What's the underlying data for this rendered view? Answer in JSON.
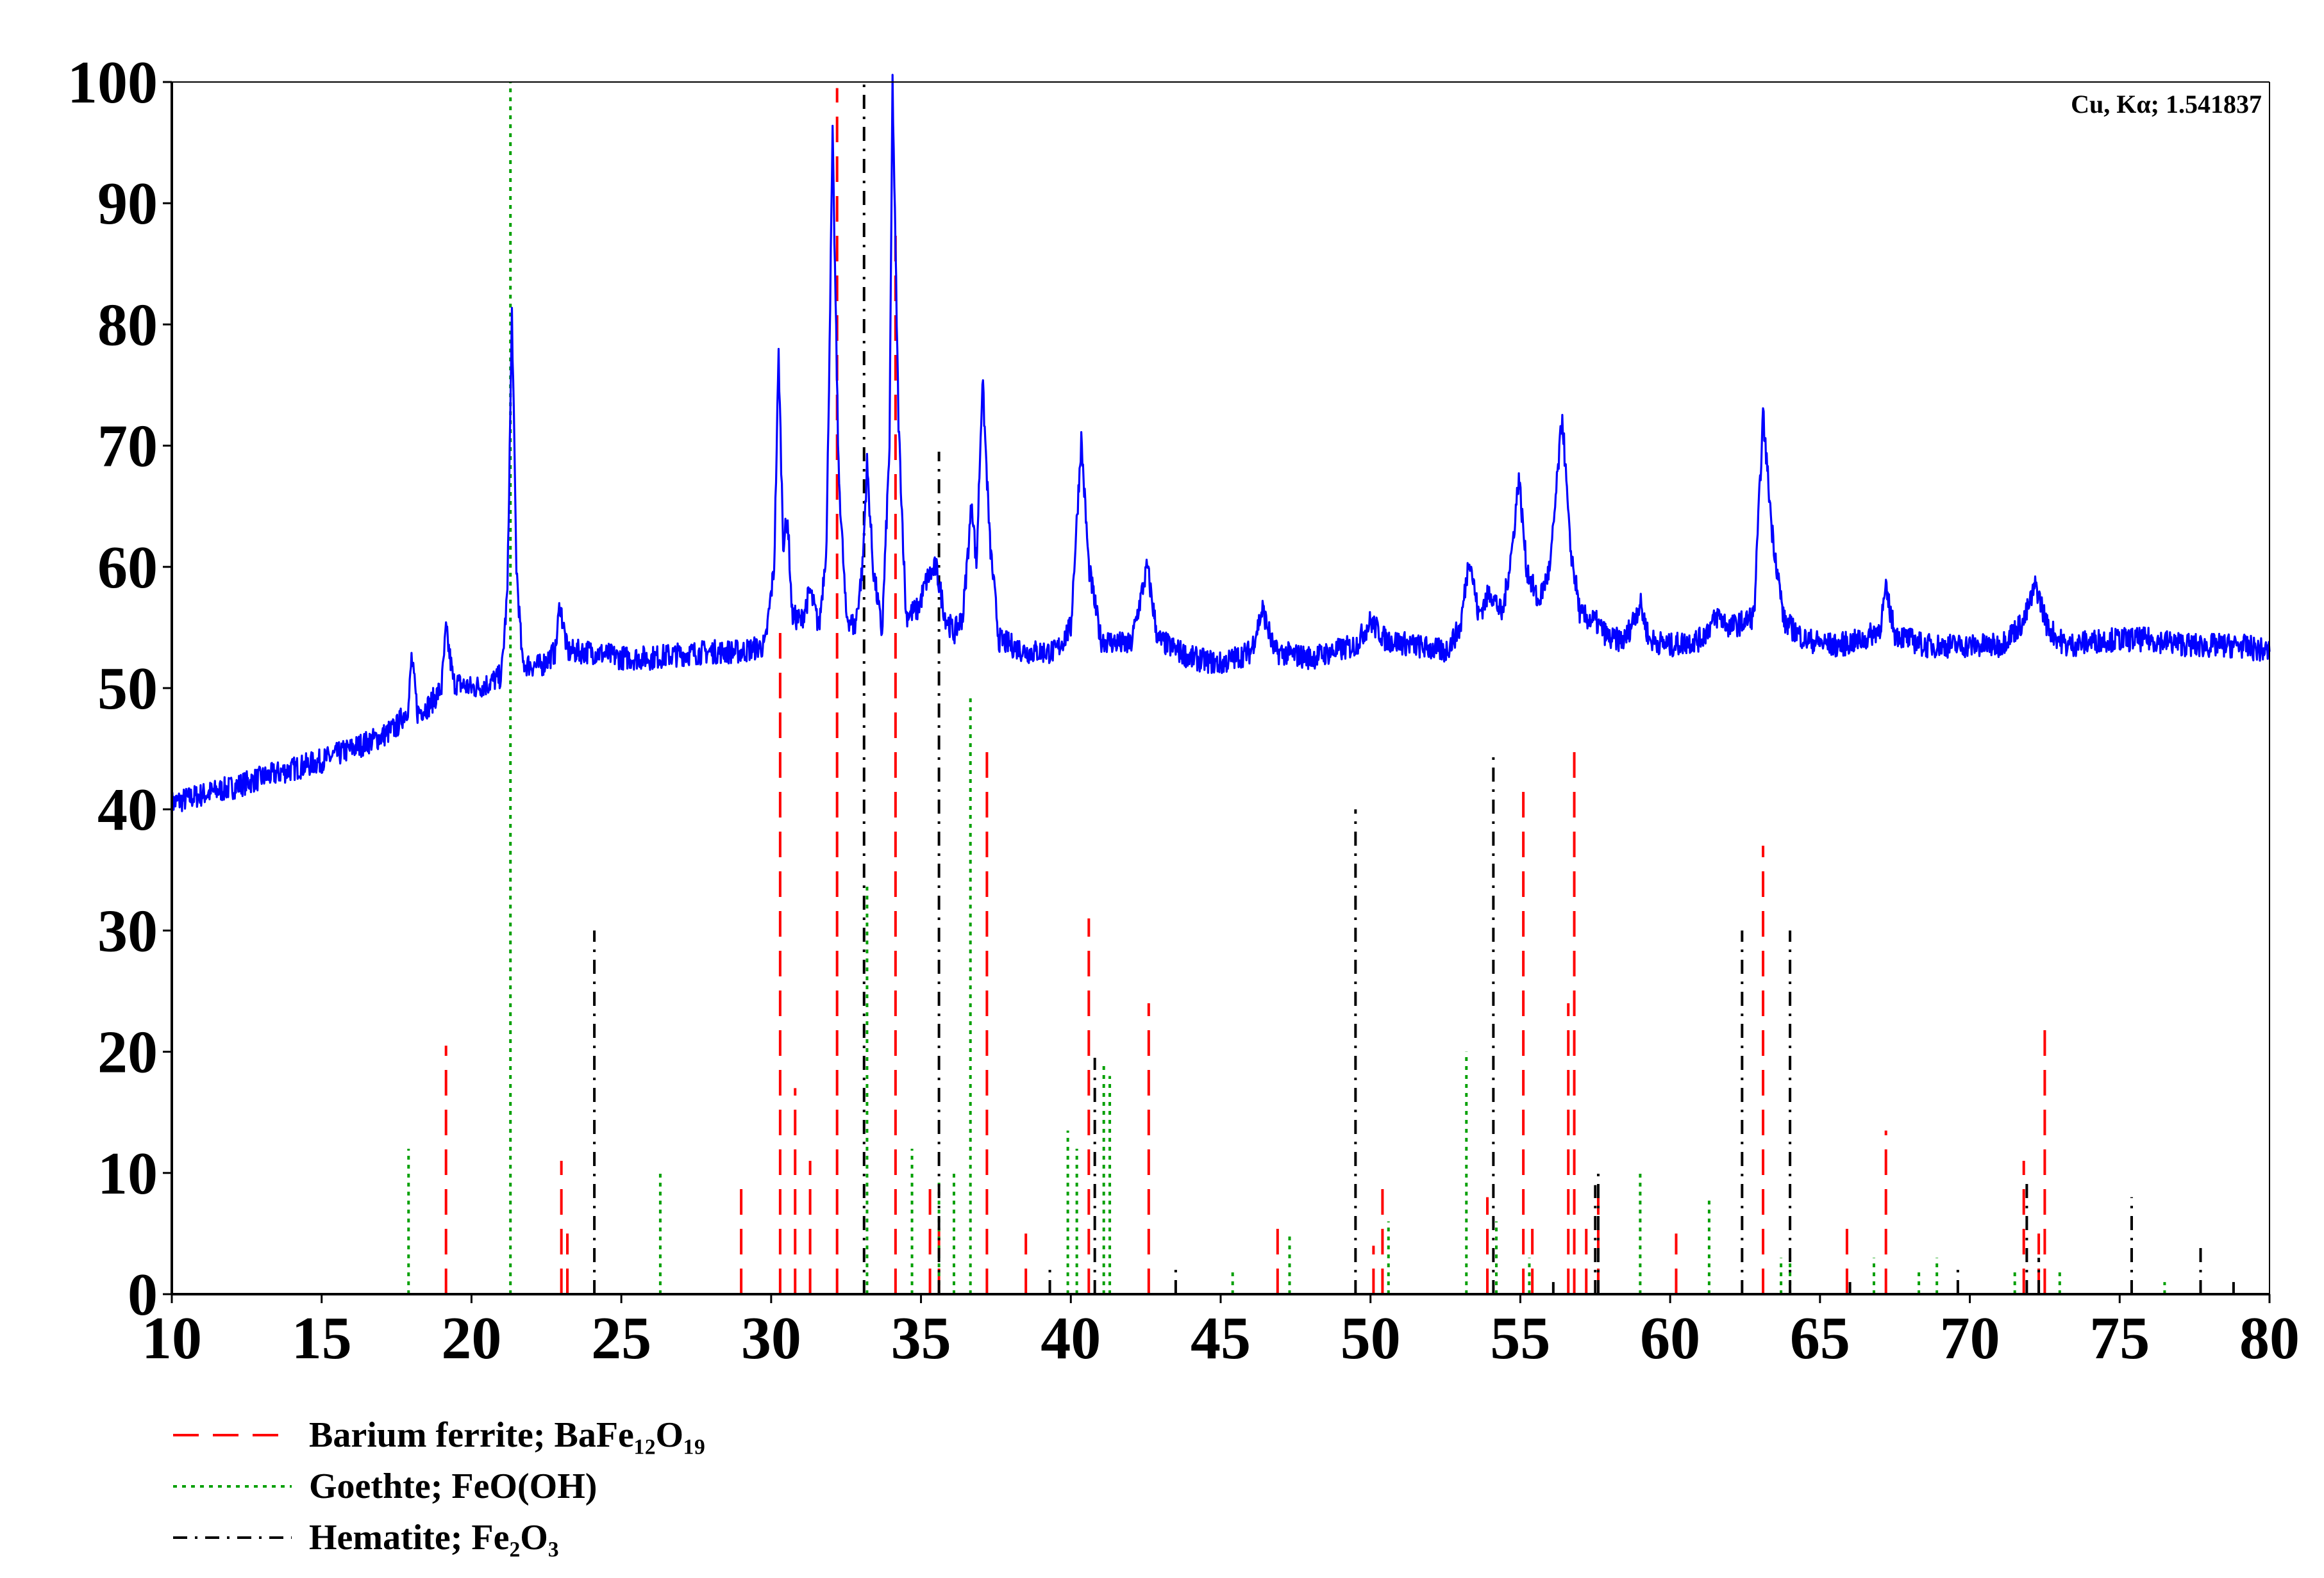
{
  "chart_data": {
    "type": "line",
    "title": "",
    "xlabel": "",
    "ylabel": "",
    "xlim": [
      10,
      80
    ],
    "ylim": [
      0,
      100
    ],
    "x_ticks": [
      10,
      15,
      20,
      25,
      30,
      35,
      40,
      45,
      50,
      55,
      60,
      65,
      70,
      75,
      80
    ],
    "y_ticks": [
      0,
      10,
      20,
      30,
      40,
      50,
      60,
      70,
      80,
      90,
      100
    ],
    "grid": false,
    "annotation": "Cu, Kα; 1.541837",
    "pattern": {
      "color": "#0000ff",
      "points": [
        [
          10,
          40.5
        ],
        [
          11,
          41.2
        ],
        [
          12,
          41.8
        ],
        [
          13,
          42.6
        ],
        [
          14,
          43.3
        ],
        [
          15,
          44.0
        ],
        [
          16,
          45.0
        ],
        [
          17,
          46.0
        ],
        [
          17.5,
          46.8
        ],
        [
          17.9,
          48.5
        ],
        [
          18.0,
          52.5
        ],
        [
          18.2,
          48.0
        ],
        [
          18.6,
          48.6
        ],
        [
          19.0,
          50.0
        ],
        [
          19.15,
          54.8
        ],
        [
          19.4,
          50.5
        ],
        [
          20,
          50.0
        ],
        [
          20.5,
          50.3
        ],
        [
          21.0,
          51.0
        ],
        [
          21.2,
          58.0
        ],
        [
          21.35,
          81.0
        ],
        [
          21.5,
          60.0
        ],
        [
          21.7,
          52.0
        ],
        [
          22.3,
          51.8
        ],
        [
          22.8,
          53.0
        ],
        [
          22.95,
          57.0
        ],
        [
          23.2,
          53.0
        ],
        [
          24,
          53.0
        ],
        [
          25,
          52.5
        ],
        [
          26,
          52.5
        ],
        [
          27,
          52.8
        ],
        [
          28,
          53.0
        ],
        [
          29,
          53.0
        ],
        [
          29.8,
          53.5
        ],
        [
          30.1,
          60.0
        ],
        [
          30.25,
          77.5
        ],
        [
          30.4,
          62.0
        ],
        [
          30.55,
          64.0
        ],
        [
          30.7,
          56.0
        ],
        [
          31.0,
          55.5
        ],
        [
          31.3,
          58.0
        ],
        [
          31.6,
          55.0
        ],
        [
          31.85,
          62.0
        ],
        [
          32.05,
          95.5
        ],
        [
          32.25,
          68.0
        ],
        [
          32.5,
          56.0
        ],
        [
          32.8,
          55.0
        ],
        [
          33.05,
          60.0
        ],
        [
          33.2,
          68.5
        ],
        [
          33.4,
          60.0
        ],
        [
          33.7,
          54.5
        ],
        [
          33.95,
          70.0
        ],
        [
          34.05,
          100.0
        ],
        [
          34.25,
          72.0
        ],
        [
          34.5,
          56.0
        ],
        [
          34.9,
          56.5
        ],
        [
          35.2,
          59.0
        ],
        [
          35.5,
          60.0
        ],
        [
          35.8,
          56.0
        ],
        [
          36.1,
          54.5
        ],
        [
          36.4,
          56.0
        ],
        [
          36.7,
          65.5
        ],
        [
          36.85,
          60.0
        ],
        [
          37.05,
          75.5
        ],
        [
          37.3,
          62.0
        ],
        [
          37.6,
          54.0
        ],
        [
          38.5,
          53.0
        ],
        [
          39.5,
          53.0
        ],
        [
          40.0,
          55.0
        ],
        [
          40.35,
          70.5
        ],
        [
          40.6,
          60.0
        ],
        [
          41.0,
          54.0
        ],
        [
          42.0,
          53.5
        ],
        [
          42.55,
          60.0
        ],
        [
          42.9,
          54.0
        ],
        [
          44,
          52.5
        ],
        [
          45,
          52.0
        ],
        [
          46.0,
          53.0
        ],
        [
          46.4,
          56.5
        ],
        [
          46.8,
          53.0
        ],
        [
          48,
          52.5
        ],
        [
          49.5,
          53.5
        ],
        [
          50.0,
          55.5
        ],
        [
          50.5,
          54.0
        ],
        [
          51.5,
          53.5
        ],
        [
          52.5,
          53.0
        ],
        [
          53.0,
          55.0
        ],
        [
          53.3,
          61.0
        ],
        [
          53.6,
          56.0
        ],
        [
          54.0,
          58.0
        ],
        [
          54.4,
          56.0
        ],
        [
          54.75,
          62.0
        ],
        [
          54.95,
          67.5
        ],
        [
          55.2,
          60.0
        ],
        [
          55.6,
          57.0
        ],
        [
          56.0,
          60.0
        ],
        [
          56.4,
          72.5
        ],
        [
          56.65,
          62.0
        ],
        [
          57.0,
          56.0
        ],
        [
          57.5,
          55.5
        ],
        [
          58.0,
          54.0
        ],
        [
          58.5,
          54.0
        ],
        [
          59.0,
          57.0
        ],
        [
          59.3,
          54.0
        ],
        [
          60,
          53.5
        ],
        [
          61,
          54.0
        ],
        [
          61.6,
          56.0
        ],
        [
          62.0,
          55.0
        ],
        [
          62.5,
          55.5
        ],
        [
          62.8,
          56.0
        ],
        [
          63.1,
          72.5
        ],
        [
          63.4,
          63.0
        ],
        [
          63.8,
          55.5
        ],
        [
          64.5,
          54.0
        ],
        [
          65.5,
          53.5
        ],
        [
          66.5,
          54.0
        ],
        [
          67.0,
          55.0
        ],
        [
          67.2,
          58.0
        ],
        [
          67.5,
          54.5
        ],
        [
          68.5,
          53.5
        ],
        [
          70.0,
          53.5
        ],
        [
          71.0,
          53.5
        ],
        [
          71.8,
          55.5
        ],
        [
          72.2,
          58.5
        ],
        [
          72.6,
          55.0
        ],
        [
          73.2,
          53.5
        ],
        [
          74.5,
          54.0
        ],
        [
          76.0,
          54.0
        ],
        [
          77.5,
          53.5
        ],
        [
          79.0,
          53.5
        ],
        [
          80,
          53.0
        ]
      ]
    },
    "series": [
      {
        "name": "Barium ferrite; BaFe₁₂O₁₉",
        "color": "#ff0000",
        "style": "dashed",
        "peaks": [
          [
            19.15,
            20.5
          ],
          [
            23.0,
            11
          ],
          [
            23.2,
            5
          ],
          [
            29.0,
            9
          ],
          [
            30.3,
            55.5
          ],
          [
            30.8,
            17
          ],
          [
            31.3,
            11
          ],
          [
            32.2,
            99.5
          ],
          [
            34.15,
            88
          ],
          [
            35.3,
            9.5
          ],
          [
            35.6,
            6
          ],
          [
            37.2,
            45
          ],
          [
            38.5,
            5
          ],
          [
            40.6,
            31
          ],
          [
            42.6,
            24
          ],
          [
            46.9,
            6
          ],
          [
            50.1,
            4
          ],
          [
            50.4,
            9
          ],
          [
            53.9,
            8
          ],
          [
            55.1,
            42.5
          ],
          [
            55.4,
            6
          ],
          [
            56.6,
            24
          ],
          [
            56.8,
            45.5
          ],
          [
            57.2,
            6
          ],
          [
            57.6,
            8
          ],
          [
            60.2,
            5
          ],
          [
            63.1,
            37
          ],
          [
            65.9,
            6
          ],
          [
            67.2,
            13.5
          ],
          [
            71.8,
            11
          ],
          [
            72.5,
            22
          ],
          [
            72.3,
            5
          ]
        ]
      },
      {
        "name": "Goethte; FeO(OH)",
        "color": "#00a000",
        "style": "dotted",
        "peaks": [
          [
            17.9,
            12
          ],
          [
            21.3,
            100
          ],
          [
            26.3,
            10
          ],
          [
            33.2,
            34
          ],
          [
            34.7,
            12
          ],
          [
            35.6,
            9.5
          ],
          [
            36.1,
            10
          ],
          [
            36.65,
            49.5
          ],
          [
            39.9,
            13.5
          ],
          [
            40.2,
            12
          ],
          [
            41.3,
            18
          ],
          [
            41.1,
            19
          ],
          [
            45.4,
            2
          ],
          [
            47.3,
            5
          ],
          [
            50.6,
            6
          ],
          [
            53.2,
            20
          ],
          [
            54.2,
            6
          ],
          [
            55.3,
            3
          ],
          [
            59.0,
            10
          ],
          [
            61.3,
            8
          ],
          [
            63.7,
            3
          ],
          [
            64.0,
            3
          ],
          [
            66.8,
            3
          ],
          [
            68.3,
            2
          ],
          [
            68.9,
            3
          ],
          [
            71.5,
            2
          ],
          [
            73.0,
            2
          ],
          [
            76.5,
            1
          ]
        ]
      },
      {
        "name": "Hematite; Fe₂O₃",
        "color": "#000000",
        "style": "dashdot",
        "peaks": [
          [
            24.1,
            30
          ],
          [
            33.1,
            100
          ],
          [
            35.6,
            69.5
          ],
          [
            39.3,
            2.5
          ],
          [
            40.8,
            19.5
          ],
          [
            43.5,
            2.5
          ],
          [
            49.5,
            40
          ],
          [
            54.1,
            44.5
          ],
          [
            56.1,
            1
          ],
          [
            57.5,
            9
          ],
          [
            57.6,
            10
          ],
          [
            62.4,
            30
          ],
          [
            64.0,
            30
          ],
          [
            66.0,
            1
          ],
          [
            69.6,
            2.5
          ],
          [
            71.9,
            9.5
          ],
          [
            72.3,
            3
          ],
          [
            75.4,
            8
          ],
          [
            77.7,
            4
          ],
          [
            78.8,
            1
          ]
        ]
      }
    ],
    "legend": {
      "position": "bottom-left",
      "entries": [
        {
          "label": "Barium ferrite; BaFe₁₂O₁₉",
          "color": "#ff0000",
          "style": "dashed"
        },
        {
          "label": "Goethte; FeO(OH)",
          "color": "#00a000",
          "style": "dotted"
        },
        {
          "label": "Hematite; Fe₂O₃",
          "color": "#000000",
          "style": "dashdot"
        }
      ]
    }
  }
}
